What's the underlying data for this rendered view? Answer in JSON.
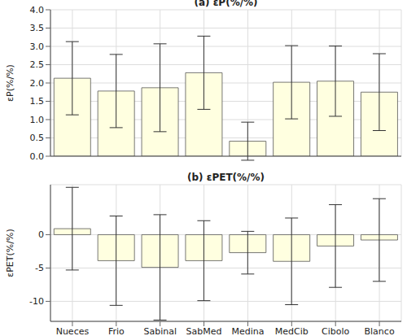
{
  "chart_data": [
    {
      "type": "bar",
      "title": "(a) εP(%/%)",
      "y_label": "εP(%/%)",
      "categories": [
        "Nueces",
        "Frio",
        "Sabinal",
        "SabMed",
        "Medina",
        "MedCib",
        "Cibolo",
        "Blanco"
      ],
      "values": [
        2.13,
        1.78,
        1.87,
        2.28,
        0.41,
        2.02,
        2.05,
        1.75
      ],
      "errors": [
        1.0,
        1.0,
        1.2,
        1.0,
        0.52,
        1.0,
        0.96,
        1.05
      ],
      "color": "#ffffe0",
      "ylim": [
        0,
        4
      ],
      "yticks": [
        {
          "value": 0,
          "label": "0.0"
        },
        {
          "value": 0.5,
          "label": "0.5"
        },
        {
          "value": 1,
          "label": "1.0"
        },
        {
          "value": 1.5,
          "label": "1.5"
        },
        {
          "value": 2,
          "label": "2.0"
        },
        {
          "value": 2.5,
          "label": "2.5"
        },
        {
          "value": 3,
          "label": "3.0"
        },
        {
          "value": 3.5,
          "label": "3.5"
        },
        {
          "value": 4,
          "label": "4.0"
        }
      ],
      "grid": true,
      "tick_labels": "y"
    },
    {
      "type": "bar",
      "title": "(b) εPET(%/%)",
      "y_label": "εPET(%/%)",
      "categories": [
        "Nueces",
        "Frio",
        "Sabinal",
        "SabMed",
        "Medina",
        "MedCib",
        "Cibolo",
        "Blanco"
      ],
      "values": [
        0.9,
        -3.9,
        -4.9,
        -3.9,
        -2.7,
        -4.0,
        -1.7,
        -0.8
      ],
      "errors": [
        6.2,
        6.7,
        7.9,
        6.0,
        3.2,
        6.5,
        6.2,
        6.2
      ],
      "color": "#ffffe0",
      "ylim": [
        -13,
        7.5
      ],
      "yticks": [
        -10,
        -5,
        0
      ],
      "grid": true
    }
  ]
}
